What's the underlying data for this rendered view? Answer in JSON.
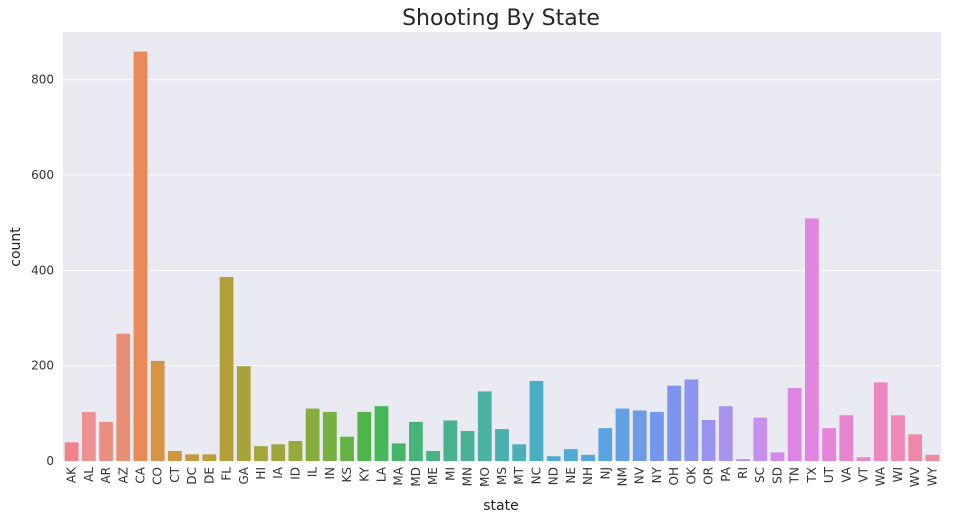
{
  "chart_data": {
    "type": "bar",
    "title": "Shooting By State",
    "xlabel": "state",
    "ylabel": "count",
    "ylim": [
      0,
      900
    ],
    "yticks": [
      0,
      200,
      400,
      600,
      800
    ],
    "grid": true,
    "background": "#eaeaf2",
    "categories": [
      "AK",
      "AL",
      "AR",
      "AZ",
      "CA",
      "CO",
      "CT",
      "DC",
      "DE",
      "FL",
      "GA",
      "HI",
      "IA",
      "ID",
      "IL",
      "IN",
      "KS",
      "KY",
      "LA",
      "MA",
      "MD",
      "ME",
      "MI",
      "MN",
      "MO",
      "MS",
      "MT",
      "NC",
      "ND",
      "NE",
      "NH",
      "NJ",
      "NM",
      "NV",
      "NY",
      "OH",
      "OK",
      "OR",
      "PA",
      "RI",
      "SC",
      "SD",
      "TN",
      "TX",
      "UT",
      "VA",
      "VT",
      "WA",
      "WI",
      "WV",
      "WY"
    ],
    "values": [
      39,
      103,
      82,
      267,
      859,
      210,
      21,
      14,
      14,
      386,
      199,
      31,
      35,
      42,
      110,
      103,
      51,
      103,
      115,
      37,
      82,
      21,
      85,
      63,
      146,
      67,
      35,
      168,
      10,
      25,
      13,
      69,
      110,
      106,
      103,
      158,
      171,
      86,
      115,
      4,
      91,
      18,
      153,
      509,
      69,
      96,
      8,
      165,
      96,
      56,
      13
    ],
    "colors": [
      "#f0828a",
      "#ec9190",
      "#e99080",
      "#e89076",
      "#e98a58",
      "#d99347",
      "#d0963e",
      "#c59a3c",
      "#bc9e3a",
      "#b39f3a",
      "#a8a23a",
      "#a4a53a",
      "#9ea63a",
      "#95aa3a",
      "#86ad3c",
      "#76b03f",
      "#65b345",
      "#51b64a",
      "#47b858",
      "#45b56a",
      "#47b378",
      "#48b282",
      "#49b28c",
      "#4ab197",
      "#4ab1a3",
      "#4bb0ad",
      "#4bafb8",
      "#4caec2",
      "#4eadcb",
      "#50acd3",
      "#54a9da",
      "#5aa5e0",
      "#62a1e4",
      "#6a9ce8",
      "#7398eb",
      "#7d95ee",
      "#8b94ef",
      "#9a92ef",
      "#a994ee",
      "#b892ed",
      "#c690eb",
      "#d28ce8",
      "#dd87e5",
      "#e285e0",
      "#e684d9",
      "#e885d2",
      "#ea86ca",
      "#ec86c0",
      "#ee88b5",
      "#ef89a9",
      "#f0899d"
    ]
  }
}
